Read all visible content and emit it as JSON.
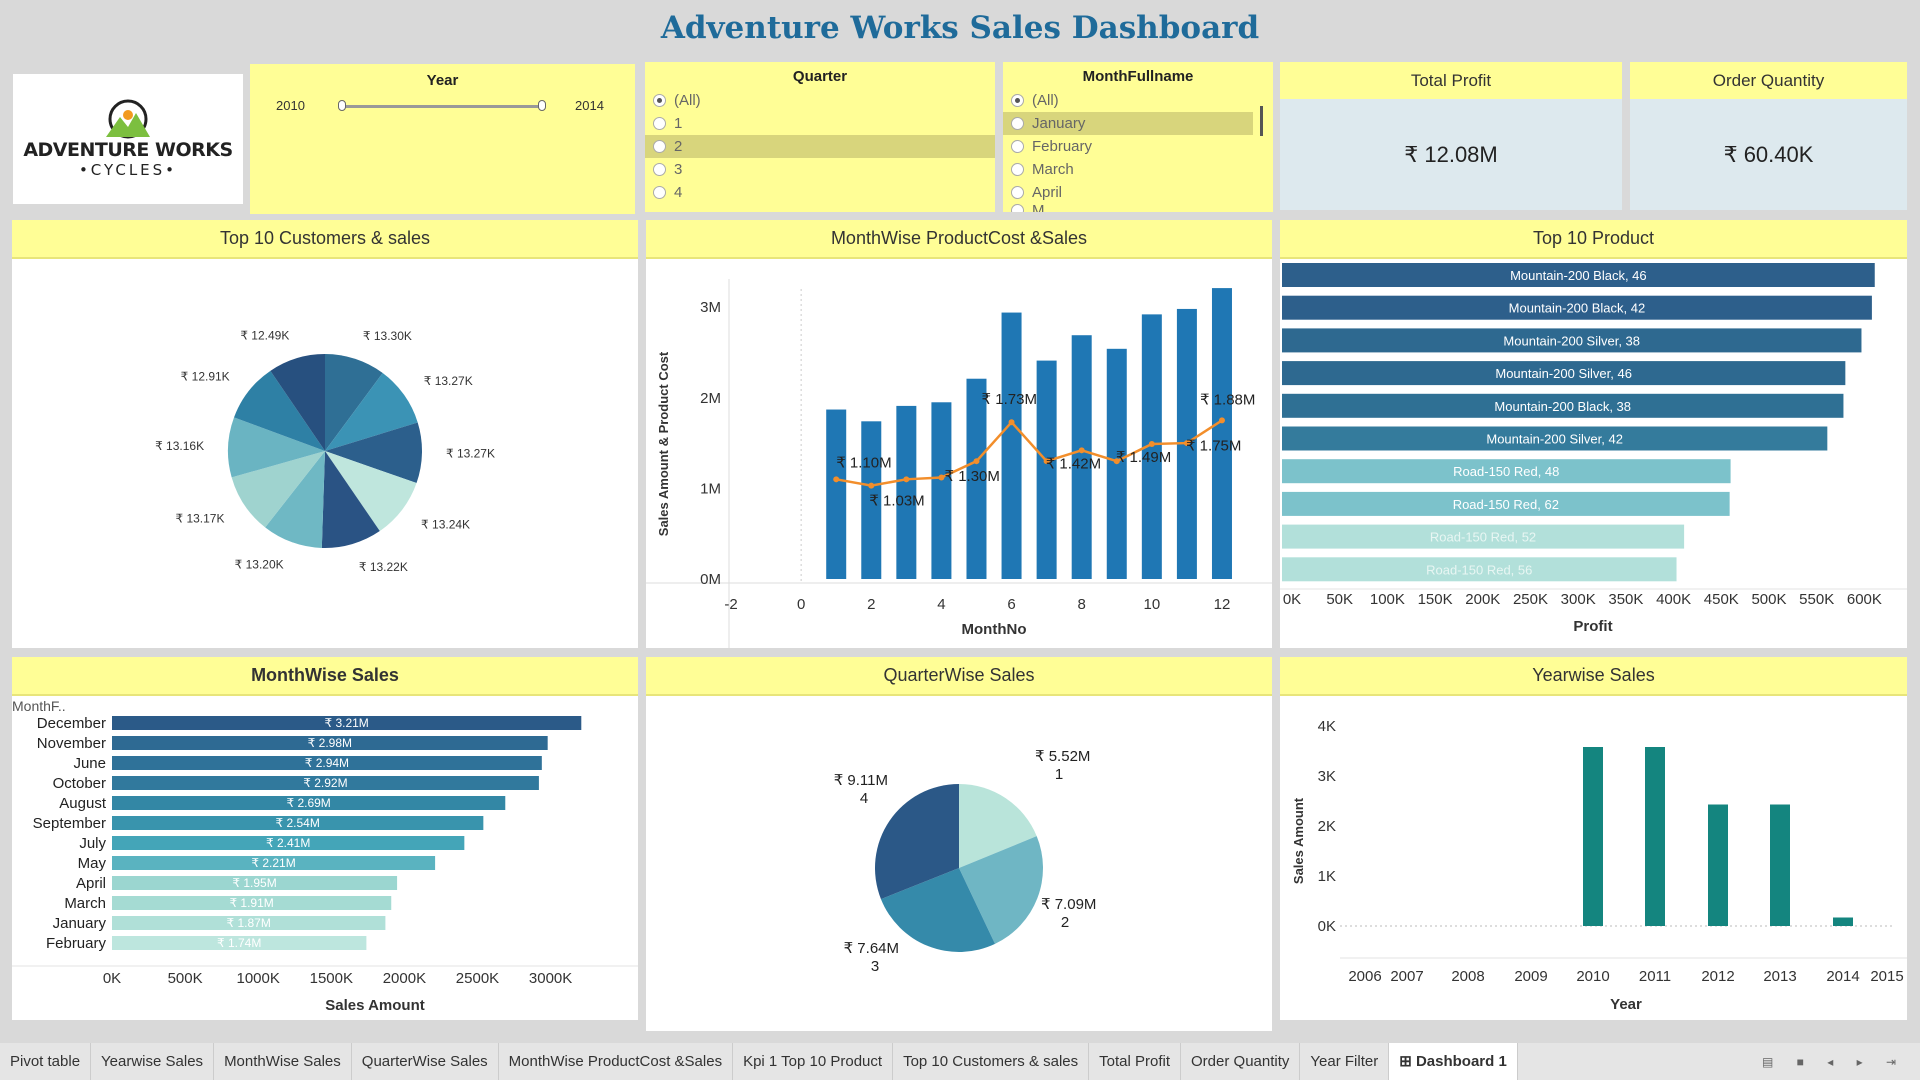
{
  "dashboard": {
    "title": "Adventure Works Sales Dashboard"
  },
  "logo": {
    "line1": "ADVENTURE WORKS",
    "line2": "•CYCLES•"
  },
  "year_filter": {
    "title": "Year",
    "min": "2010",
    "max": "2014",
    "range": [
      2010,
      2014
    ]
  },
  "quarter_filter": {
    "title": "Quarter",
    "options": [
      "(All)",
      "1",
      "2",
      "3",
      "4"
    ],
    "selected": "(All)",
    "highlighted": "2"
  },
  "month_filter": {
    "title": "MonthFullname",
    "options": [
      "(All)",
      "January",
      "February",
      "March",
      "April",
      "M..."
    ],
    "selected": "(All)",
    "highlighted": "January"
  },
  "kpis": {
    "total_profit": {
      "label": "Total Profit",
      "value": "₹ 12.08M"
    },
    "order_quantity": {
      "label": "Order Quantity",
      "value": "₹ 60.40K"
    }
  },
  "panels": {
    "top_customers": "Top 10 Customers & sales",
    "monthwise_cost_sales": "MonthWise ProductCost &Sales",
    "top_product": "Top 10 Product",
    "monthwise_sales": "MonthWise Sales",
    "quarterwise_sales": "QuarterWise  Sales",
    "yearwise_sales": "Yearwise Sales"
  },
  "chart_data": [
    {
      "id": "top_customers",
      "type": "pie",
      "labels": [
        "₹ 13.30K",
        "₹ 13.27K",
        "₹ 13.27K",
        "₹ 13.24K",
        "₹ 13.22K",
        "₹ 13.20K",
        "₹ 13.17K",
        "₹ 13.16K",
        "₹ 12.91K",
        "₹ 12.49K"
      ],
      "values": [
        13.3,
        13.27,
        13.27,
        13.24,
        13.22,
        13.2,
        13.17,
        13.16,
        12.91,
        12.49
      ],
      "colors": [
        "#2f6f95",
        "#3b93b5",
        "#2c5f8c",
        "#bfe6dd",
        "#2a5384",
        "#6fb8c4",
        "#9fd3cf",
        "#6ab4c2",
        "#2e80a5",
        "#27507f"
      ]
    },
    {
      "id": "monthwise_cost_sales",
      "type": "bar",
      "xlabel": "MonthNo",
      "ylabel": "Sales Amount & Product Cost",
      "x_ticks": [
        "-2",
        "0",
        "2",
        "4",
        "6",
        "8",
        "10",
        "12"
      ],
      "y_ticks": [
        "0M",
        "1M",
        "2M",
        "3M"
      ],
      "xlim": [
        -2,
        12.4
      ],
      "ylim": [
        0,
        3.2
      ],
      "months": [
        1,
        2,
        3,
        4,
        5,
        6,
        7,
        8,
        9,
        10,
        11,
        12
      ],
      "series": [
        {
          "name": "Sales Amount",
          "values": [
            1.87,
            1.74,
            1.91,
            1.95,
            2.21,
            2.94,
            2.41,
            2.69,
            2.54,
            2.92,
            2.98,
            3.21
          ],
          "color": "#1f77b4"
        },
        {
          "name": "Product Cost",
          "values": [
            1.1,
            1.03,
            1.1,
            1.12,
            1.3,
            1.73,
            1.3,
            1.42,
            1.3,
            1.49,
            1.5,
            1.75
          ],
          "color": "#f28e2b"
        }
      ],
      "line_labels": [
        {
          "month": 1,
          "text": "₹ 1.10M"
        },
        {
          "month": 2,
          "text": "₹ 1.03M"
        },
        {
          "month": 5,
          "text": "₹ 1.30M"
        },
        {
          "month": 6,
          "text": "₹ 1.73M"
        },
        {
          "month": 8,
          "text": "₹ 1.42M"
        },
        {
          "month": 10,
          "text": "₹ 1.49M"
        },
        {
          "month": 12,
          "text": "₹ 1.75M"
        },
        {
          "month": 12,
          "text": "₹ 1.88M"
        }
      ]
    },
    {
      "id": "top_product",
      "type": "bar",
      "orientation": "horizontal",
      "xlabel": "Profit",
      "x_ticks": [
        "0K",
        "50K",
        "100K",
        "150K",
        "200K",
        "250K",
        "300K",
        "350K",
        "400K",
        "450K",
        "500K",
        "550K",
        "600K"
      ],
      "xlim": [
        0,
        620000
      ],
      "categories": [
        "Mountain-200 Black, 46",
        "Mountain-200 Black, 42",
        "Mountain-200 Silver, 38",
        "Mountain-200 Silver, 46",
        "Mountain-200 Black, 38",
        "Mountain-200 Silver, 42",
        "Road-150 Red, 48",
        "Road-150 Red, 62",
        "Road-150 Red, 52",
        "Road-150 Red, 56"
      ],
      "values": [
        625000,
        622000,
        611000,
        594000,
        592000,
        575000,
        473000,
        472000,
        424000,
        416000
      ],
      "colors": [
        "#2d5f8b",
        "#2d5f8b",
        "#2e6990",
        "#2e6990",
        "#2f7094",
        "#347b9c",
        "#7cc2cb",
        "#7cc2cb",
        "#b2e0da",
        "#b2e0da"
      ]
    },
    {
      "id": "monthwise_sales",
      "type": "bar",
      "orientation": "horizontal",
      "xlabel": "Sales Amount",
      "ylabel": "MonthF..",
      "x_ticks": [
        "0K",
        "500K",
        "1000K",
        "1500K",
        "2000K",
        "2500K",
        "3000K"
      ],
      "xlim": [
        0,
        3420000
      ],
      "categories": [
        "December",
        "November",
        "June",
        "October",
        "August",
        "September",
        "July",
        "May",
        "April",
        "March",
        "January",
        "February"
      ],
      "values": [
        3210000,
        2980000,
        2940000,
        2920000,
        2690000,
        2540000,
        2410000,
        2210000,
        1950000,
        1910000,
        1870000,
        1740000
      ],
      "labels": [
        "₹ 3.21M",
        "₹ 2.98M",
        "₹ 2.94M",
        "₹ 2.92M",
        "₹ 2.69M",
        "₹ 2.54M",
        "₹ 2.41M",
        "₹ 2.21M",
        "₹ 1.95M",
        "₹ 1.91M",
        "₹ 1.87M",
        "₹ 1.74M"
      ],
      "colors": [
        "#2b5a88",
        "#2e6a93",
        "#2f7299",
        "#31799d",
        "#3387a5",
        "#3994ad",
        "#44a5b8",
        "#5ab3c0",
        "#9bd6d0",
        "#a5dbd3",
        "#b0e0d8",
        "#bde6de"
      ]
    },
    {
      "id": "quarterwise_sales",
      "type": "pie",
      "categories": [
        "1",
        "2",
        "3",
        "4"
      ],
      "labels": [
        "₹ 5.52M",
        "₹ 7.09M",
        "₹ 7.64M",
        "₹ 9.11M"
      ],
      "values": [
        5.52,
        7.09,
        7.64,
        9.11
      ],
      "colors": [
        "#b9e4da",
        "#6fb6c4",
        "#358aaa",
        "#2b5887"
      ]
    },
    {
      "id": "yearwise_sales",
      "type": "bar",
      "xlabel": "Year",
      "ylabel": "Sales Amount",
      "x_ticks": [
        "2006",
        "2007",
        "2008",
        "2009",
        "2010",
        "2011",
        "2012",
        "2013",
        "2014",
        "2015"
      ],
      "y_ticks": [
        "0K",
        "1K",
        "2K",
        "3K",
        "4K"
      ],
      "ylim": [
        0,
        4200
      ],
      "years": [
        2010,
        2011,
        2012,
        2013,
        2014
      ],
      "values": [
        3580,
        3580,
        2430,
        2430,
        170
      ],
      "color": "#14857f"
    }
  ],
  "tabs": [
    "Pivot table",
    "Yearwise Sales",
    "MonthWise Sales",
    "QuarterWise  Sales",
    "MonthWise ProductCost &Sales",
    "Kpi 1 Top 10 Product",
    "Top 10 Customers & sales",
    "Total Profit",
    "Order Quantity",
    "Year Filter",
    "Dashboard 1"
  ],
  "active_tab": "Dashboard 1"
}
